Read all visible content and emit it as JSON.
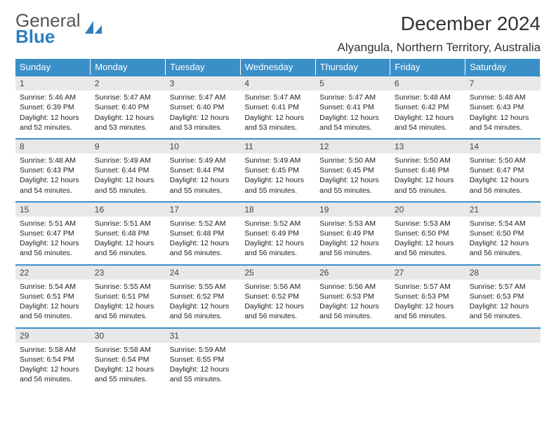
{
  "brand": {
    "word1": "General",
    "word2": "Blue"
  },
  "title": "December 2024",
  "location": "Alyangula, Northern Territory, Australia",
  "colors": {
    "header_bg": "#3b8fc8",
    "header_text": "#ffffff",
    "daynum_bg": "#e8e8e8",
    "border": "#3b8fc8",
    "brand_gray": "#555555",
    "brand_blue": "#2d7fc0"
  },
  "weekdays": [
    "Sunday",
    "Monday",
    "Tuesday",
    "Wednesday",
    "Thursday",
    "Friday",
    "Saturday"
  ],
  "days": [
    {
      "n": "1",
      "sr": "5:46 AM",
      "ss": "6:39 PM",
      "dl": "12 hours and 52 minutes."
    },
    {
      "n": "2",
      "sr": "5:47 AM",
      "ss": "6:40 PM",
      "dl": "12 hours and 53 minutes."
    },
    {
      "n": "3",
      "sr": "5:47 AM",
      "ss": "6:40 PM",
      "dl": "12 hours and 53 minutes."
    },
    {
      "n": "4",
      "sr": "5:47 AM",
      "ss": "6:41 PM",
      "dl": "12 hours and 53 minutes."
    },
    {
      "n": "5",
      "sr": "5:47 AM",
      "ss": "6:41 PM",
      "dl": "12 hours and 54 minutes."
    },
    {
      "n": "6",
      "sr": "5:48 AM",
      "ss": "6:42 PM",
      "dl": "12 hours and 54 minutes."
    },
    {
      "n": "7",
      "sr": "5:48 AM",
      "ss": "6:43 PM",
      "dl": "12 hours and 54 minutes."
    },
    {
      "n": "8",
      "sr": "5:48 AM",
      "ss": "6:43 PM",
      "dl": "12 hours and 54 minutes."
    },
    {
      "n": "9",
      "sr": "5:49 AM",
      "ss": "6:44 PM",
      "dl": "12 hours and 55 minutes."
    },
    {
      "n": "10",
      "sr": "5:49 AM",
      "ss": "6:44 PM",
      "dl": "12 hours and 55 minutes."
    },
    {
      "n": "11",
      "sr": "5:49 AM",
      "ss": "6:45 PM",
      "dl": "12 hours and 55 minutes."
    },
    {
      "n": "12",
      "sr": "5:50 AM",
      "ss": "6:45 PM",
      "dl": "12 hours and 55 minutes."
    },
    {
      "n": "13",
      "sr": "5:50 AM",
      "ss": "6:46 PM",
      "dl": "12 hours and 55 minutes."
    },
    {
      "n": "14",
      "sr": "5:50 AM",
      "ss": "6:47 PM",
      "dl": "12 hours and 56 minutes."
    },
    {
      "n": "15",
      "sr": "5:51 AM",
      "ss": "6:47 PM",
      "dl": "12 hours and 56 minutes."
    },
    {
      "n": "16",
      "sr": "5:51 AM",
      "ss": "6:48 PM",
      "dl": "12 hours and 56 minutes."
    },
    {
      "n": "17",
      "sr": "5:52 AM",
      "ss": "6:48 PM",
      "dl": "12 hours and 56 minutes."
    },
    {
      "n": "18",
      "sr": "5:52 AM",
      "ss": "6:49 PM",
      "dl": "12 hours and 56 minutes."
    },
    {
      "n": "19",
      "sr": "5:53 AM",
      "ss": "6:49 PM",
      "dl": "12 hours and 56 minutes."
    },
    {
      "n": "20",
      "sr": "5:53 AM",
      "ss": "6:50 PM",
      "dl": "12 hours and 56 minutes."
    },
    {
      "n": "21",
      "sr": "5:54 AM",
      "ss": "6:50 PM",
      "dl": "12 hours and 56 minutes."
    },
    {
      "n": "22",
      "sr": "5:54 AM",
      "ss": "6:51 PM",
      "dl": "12 hours and 56 minutes."
    },
    {
      "n": "23",
      "sr": "5:55 AM",
      "ss": "6:51 PM",
      "dl": "12 hours and 56 minutes."
    },
    {
      "n": "24",
      "sr": "5:55 AM",
      "ss": "6:52 PM",
      "dl": "12 hours and 56 minutes."
    },
    {
      "n": "25",
      "sr": "5:56 AM",
      "ss": "6:52 PM",
      "dl": "12 hours and 56 minutes."
    },
    {
      "n": "26",
      "sr": "5:56 AM",
      "ss": "6:53 PM",
      "dl": "12 hours and 56 minutes."
    },
    {
      "n": "27",
      "sr": "5:57 AM",
      "ss": "6:53 PM",
      "dl": "12 hours and 56 minutes."
    },
    {
      "n": "28",
      "sr": "5:57 AM",
      "ss": "6:53 PM",
      "dl": "12 hours and 56 minutes."
    },
    {
      "n": "29",
      "sr": "5:58 AM",
      "ss": "6:54 PM",
      "dl": "12 hours and 56 minutes."
    },
    {
      "n": "30",
      "sr": "5:58 AM",
      "ss": "6:54 PM",
      "dl": "12 hours and 55 minutes."
    },
    {
      "n": "31",
      "sr": "5:59 AM",
      "ss": "6:55 PM",
      "dl": "12 hours and 55 minutes."
    }
  ],
  "labels": {
    "sunrise": "Sunrise: ",
    "sunset": "Sunset: ",
    "daylight": "Daylight: "
  },
  "grid": {
    "start_offset": 0,
    "cols": 7,
    "rows": 5
  }
}
